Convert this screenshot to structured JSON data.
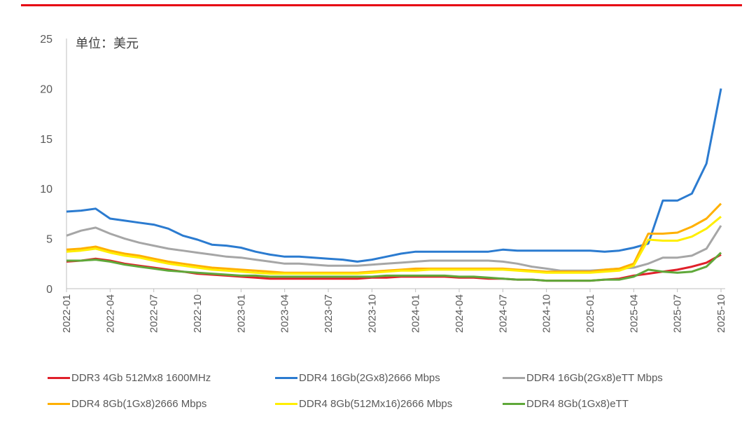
{
  "chart_data": {
    "type": "line",
    "unit_label": "单位：美元",
    "ylim": [
      0,
      25
    ],
    "yticks": [
      0,
      5,
      10,
      15,
      20,
      25
    ],
    "x_start": "2022-01",
    "x_step": "month",
    "xtick_labels": [
      "2022-01",
      "2022-04",
      "2022-07",
      "2022-10",
      "2023-01",
      "2023-04",
      "2023-07",
      "2023-10",
      "2024-01",
      "2024-04",
      "2024-07",
      "2024-10",
      "2025-01",
      "2025-04",
      "2025-07",
      "2025-10"
    ],
    "grid": false,
    "legend_position": "bottom",
    "series": [
      {
        "name": "DDR3 4Gb 512Mx8 1600MHz",
        "color": "#e0202a",
        "values": [
          2.7,
          2.8,
          3.0,
          2.8,
          2.5,
          2.3,
          2.1,
          1.9,
          1.7,
          1.5,
          1.4,
          1.3,
          1.2,
          1.1,
          1.0,
          1.0,
          1.0,
          1.0,
          1.0,
          1.0,
          1.0,
          1.1,
          1.1,
          1.2,
          1.2,
          1.2,
          1.2,
          1.1,
          1.1,
          1.0,
          1.0,
          0.9,
          0.9,
          0.8,
          0.8,
          0.8,
          0.8,
          0.9,
          1.0,
          1.3,
          1.5,
          1.7,
          1.9,
          2.2,
          2.6,
          3.4
        ]
      },
      {
        "name": "DDR4 16Gb(2Gx8)2666 Mbps",
        "color": "#2b7bd0",
        "values": [
          7.7,
          7.8,
          8.0,
          7.0,
          6.8,
          6.6,
          6.4,
          6.0,
          5.3,
          4.9,
          4.4,
          4.3,
          4.1,
          3.7,
          3.4,
          3.2,
          3.2,
          3.1,
          3.0,
          2.9,
          2.7,
          2.9,
          3.2,
          3.5,
          3.7,
          3.7,
          3.7,
          3.7,
          3.7,
          3.7,
          3.9,
          3.8,
          3.8,
          3.8,
          3.8,
          3.8,
          3.8,
          3.7,
          3.8,
          4.1,
          4.5,
          8.8,
          8.8,
          9.5,
          12.5,
          20.0
        ]
      },
      {
        "name": "DDR4 16Gb(2Gx8)eTT Mbps",
        "color": "#a6a6a6",
        "values": [
          5.3,
          5.8,
          6.1,
          5.5,
          5.0,
          4.6,
          4.3,
          4.0,
          3.8,
          3.6,
          3.4,
          3.2,
          3.1,
          2.9,
          2.7,
          2.5,
          2.5,
          2.4,
          2.3,
          2.3,
          2.3,
          2.4,
          2.5,
          2.6,
          2.7,
          2.8,
          2.8,
          2.8,
          2.8,
          2.8,
          2.7,
          2.5,
          2.2,
          2.0,
          1.8,
          1.8,
          1.8,
          1.9,
          2.0,
          2.1,
          2.5,
          3.1,
          3.1,
          3.3,
          4.0,
          6.3
        ]
      },
      {
        "name": "DDR4 8Gb(1Gx8)2666 Mbps",
        "color": "#ffb000",
        "values": [
          3.9,
          4.0,
          4.2,
          3.8,
          3.5,
          3.3,
          3.0,
          2.7,
          2.5,
          2.3,
          2.1,
          2.0,
          1.9,
          1.8,
          1.7,
          1.6,
          1.6,
          1.6,
          1.6,
          1.6,
          1.6,
          1.7,
          1.8,
          1.9,
          2.0,
          2.0,
          2.0,
          2.0,
          2.0,
          2.0,
          2.0,
          1.9,
          1.8,
          1.7,
          1.7,
          1.7,
          1.7,
          1.9,
          2.0,
          2.5,
          5.5,
          5.5,
          5.6,
          6.2,
          7.0,
          8.5
        ]
      },
      {
        "name": "DDR4 8Gb(512Mx16)2666 Mbps",
        "color": "#ffee00",
        "values": [
          3.7,
          3.8,
          4.0,
          3.6,
          3.3,
          3.1,
          2.8,
          2.5,
          2.3,
          2.1,
          1.9,
          1.8,
          1.7,
          1.6,
          1.5,
          1.5,
          1.5,
          1.5,
          1.5,
          1.5,
          1.5,
          1.6,
          1.7,
          1.8,
          1.8,
          1.9,
          1.9,
          1.9,
          1.9,
          1.9,
          1.9,
          1.8,
          1.7,
          1.6,
          1.6,
          1.6,
          1.6,
          1.7,
          1.8,
          2.3,
          4.9,
          4.8,
          4.8,
          5.2,
          6.0,
          7.2
        ]
      },
      {
        "name": "DDR4 8Gb(1Gx8)eTT",
        "color": "#5fa83a",
        "values": [
          2.8,
          2.8,
          2.9,
          2.7,
          2.4,
          2.2,
          2.0,
          1.8,
          1.7,
          1.6,
          1.5,
          1.4,
          1.3,
          1.3,
          1.2,
          1.2,
          1.2,
          1.2,
          1.2,
          1.2,
          1.2,
          1.2,
          1.3,
          1.3,
          1.3,
          1.3,
          1.3,
          1.2,
          1.2,
          1.1,
          1.0,
          0.9,
          0.9,
          0.8,
          0.8,
          0.8,
          0.8,
          0.9,
          0.9,
          1.2,
          1.9,
          1.7,
          1.6,
          1.7,
          2.2,
          3.6
        ]
      }
    ]
  }
}
